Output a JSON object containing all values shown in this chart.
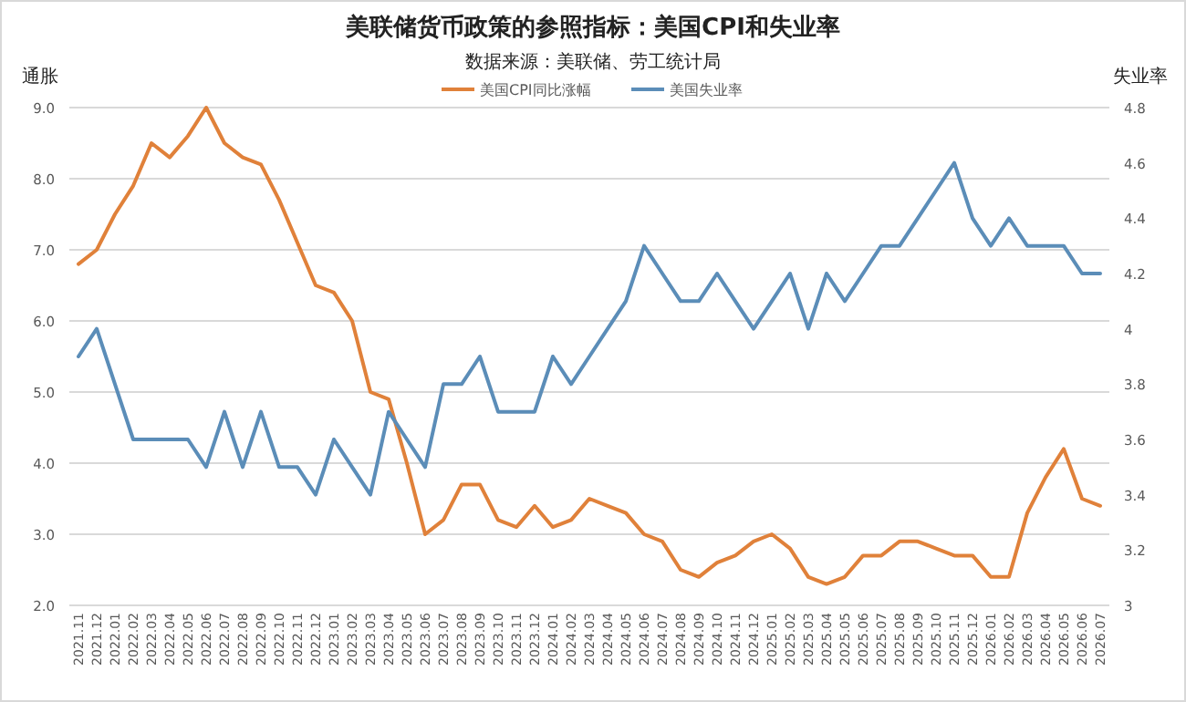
{
  "chart_data": {
    "type": "line",
    "title": "美联储货币政策的参照指标：美国CPI和失业率",
    "subtitle": "数据来源：美联储、劳工统计局",
    "ylabel": "通胀",
    "y2label": "失业率",
    "categories": [
      "2021.11",
      "2021.12",
      "2022.01",
      "2022.02",
      "2022.03",
      "2022.04",
      "2022.05",
      "2022.06",
      "2022.07",
      "2022.08",
      "2022.09",
      "2022.10",
      "2022.11",
      "2022.12",
      "2023.01",
      "2023.02",
      "2023.03",
      "2023.04",
      "2023.05",
      "2023.06",
      "2023.07",
      "2023.08",
      "2023.09",
      "2023.10",
      "2023.11",
      "2023.12",
      "2024.01",
      "2024.02",
      "2024.03",
      "2024.04",
      "2024.05",
      "2024.06",
      "2024.07",
      "2024.08",
      "2024.09",
      "2024.10",
      "2024.11",
      "2024.12",
      "2025.01",
      "2025.02",
      "2025.03",
      "2025.04",
      "2025.05",
      "2025.06",
      "2025.07",
      "2025.08",
      "2025.09",
      "2025.10",
      "2025.11",
      "2025.12",
      "2026.01",
      "2026.02",
      "2026.03",
      "2026.04",
      "2026.05",
      "2026.06",
      "2026.07"
    ],
    "series": [
      {
        "name": "美国CPI同比涨幅",
        "color": "#e0813a",
        "values": [
          6.8,
          7.0,
          7.5,
          7.9,
          8.5,
          8.3,
          8.6,
          9.0,
          8.5,
          8.3,
          8.2,
          7.7,
          7.1,
          6.5,
          6.4,
          6.0,
          5.0,
          4.9,
          4.0,
          3.0,
          3.2,
          3.7,
          3.7,
          3.2,
          3.1,
          3.4,
          3.1,
          3.2,
          3.5,
          3.4,
          3.3,
          3.0,
          2.9,
          2.5,
          2.4,
          2.6,
          2.7,
          2.9,
          3.0,
          2.8,
          2.4,
          2.3,
          2.4,
          2.7,
          2.7,
          2.9,
          2.9,
          2.8,
          2.7,
          2.7,
          2.4,
          2.4,
          3.3,
          3.8,
          4.2,
          3.5,
          3.4
        ]
      },
      {
        "name": "美国失业率",
        "color": "#5b8db8",
        "axis": "y2",
        "values": [
          3.9,
          4.0,
          3.8,
          3.6,
          3.6,
          3.6,
          3.6,
          3.5,
          3.7,
          3.5,
          3.7,
          3.5,
          3.5,
          3.4,
          3.6,
          3.5,
          3.4,
          3.7,
          3.6,
          3.5,
          3.8,
          3.8,
          3.9,
          3.7,
          3.7,
          3.7,
          3.9,
          3.8,
          3.9,
          4.0,
          4.1,
          4.3,
          4.2,
          4.1,
          4.1,
          4.2,
          4.1,
          4.0,
          4.1,
          4.2,
          4.0,
          4.2,
          4.1,
          4.2,
          4.3,
          4.3,
          4.4,
          4.5,
          4.6,
          4.4,
          4.3,
          4.4,
          4.3,
          4.3,
          4.3,
          4.2,
          4.2
        ]
      }
    ],
    "ylim": [
      2,
      9
    ],
    "yticks": [
      {
        "value": 2,
        "label": "2.0"
      },
      {
        "value": 3,
        "label": "3.0"
      },
      {
        "value": 4,
        "label": "4.0"
      },
      {
        "value": 5,
        "label": "5.0"
      },
      {
        "value": 6,
        "label": "6.0"
      },
      {
        "value": 7,
        "label": "7.0"
      },
      {
        "value": 8,
        "label": "8.0"
      },
      {
        "value": 9,
        "label": "9.0"
      }
    ],
    "y2lim": [
      3,
      4.8
    ],
    "y2ticks": [
      3,
      3.2,
      3.4,
      3.6,
      3.8,
      4,
      4.2,
      4.4,
      4.6,
      4.8
    ],
    "grid": "y",
    "legend": "top"
  }
}
